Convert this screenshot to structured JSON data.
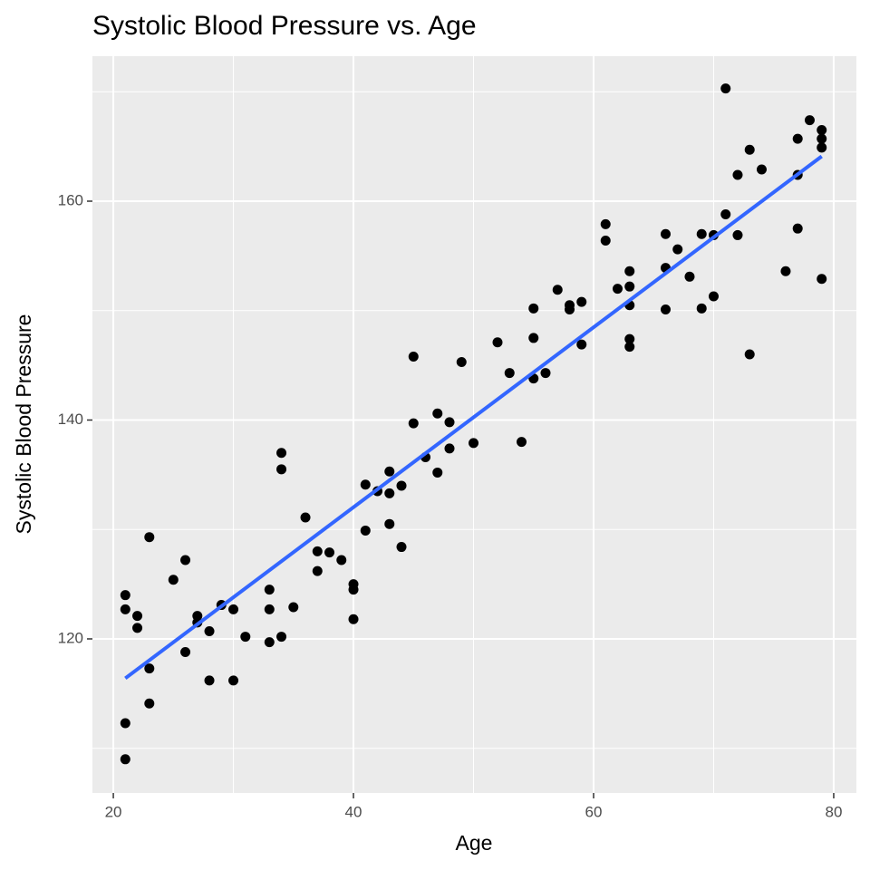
{
  "chart_data": {
    "type": "scatter",
    "title": "Systolic Blood Pressure vs. Age",
    "x_label": "Age",
    "y_label": "Systolic Blood Pressure",
    "x": [
      21,
      21,
      21,
      21,
      22,
      22,
      23,
      23,
      23,
      25,
      26,
      26,
      27,
      27,
      28,
      28,
      29,
      30,
      30,
      31,
      33,
      33,
      33,
      34,
      34,
      34,
      35,
      36,
      37,
      37,
      38,
      39,
      40,
      40,
      40,
      41,
      41,
      42,
      43,
      43,
      43,
      44,
      44,
      45,
      45,
      46,
      47,
      47,
      48,
      48,
      49,
      50,
      52,
      53,
      54,
      55,
      55,
      55,
      56,
      57,
      58,
      58,
      59,
      59,
      61,
      61,
      62,
      63,
      63,
      63,
      63,
      63,
      66,
      66,
      66,
      67,
      68,
      69,
      69,
      70,
      70,
      71,
      71,
      72,
      72,
      73,
      73,
      74,
      76,
      77,
      77,
      77,
      78,
      79,
      79,
      79,
      79
    ],
    "values": [
      124.0,
      122.7,
      112.3,
      109.0,
      122.1,
      121.0,
      129.3,
      117.3,
      114.1,
      125.4,
      127.2,
      118.8,
      122.1,
      121.5,
      120.7,
      116.2,
      123.1,
      122.7,
      116.2,
      120.2,
      124.5,
      122.7,
      119.7,
      137.0,
      135.5,
      120.2,
      122.9,
      131.1,
      128.0,
      126.2,
      127.9,
      127.2,
      125.0,
      124.5,
      121.8,
      134.1,
      129.9,
      133.5,
      135.3,
      133.3,
      130.5,
      134.0,
      128.4,
      145.8,
      139.7,
      136.6,
      140.6,
      135.2,
      139.8,
      137.4,
      145.3,
      137.9,
      147.1,
      144.3,
      138.0,
      150.2,
      147.5,
      143.8,
      144.3,
      151.9,
      150.5,
      150.1,
      150.8,
      146.9,
      157.9,
      156.4,
      152.0,
      153.6,
      152.2,
      150.5,
      147.4,
      146.7,
      157.0,
      153.9,
      150.1,
      155.6,
      153.1,
      157.0,
      150.2,
      156.9,
      151.3,
      158.8,
      170.3,
      162.4,
      156.9,
      164.7,
      146.0,
      162.9,
      153.6,
      165.7,
      162.4,
      157.5,
      167.4,
      166.5,
      165.7,
      164.9,
      152.9
    ],
    "color": "#000000",
    "fit_line": {
      "x": [
        21,
        79
      ],
      "values": [
        116.4,
        164.1
      ],
      "color": "#3366ff"
    },
    "xlim": [
      18.26,
      81.89
    ],
    "ylim": [
      105.92,
      173.25
    ],
    "xticks": [
      20,
      40,
      60,
      80
    ],
    "yticks": [
      120,
      140,
      160
    ],
    "x_minor_grid": [
      30,
      50,
      70
    ],
    "y_minor_grid": [
      110,
      130,
      150,
      170
    ],
    "grid": true
  }
}
